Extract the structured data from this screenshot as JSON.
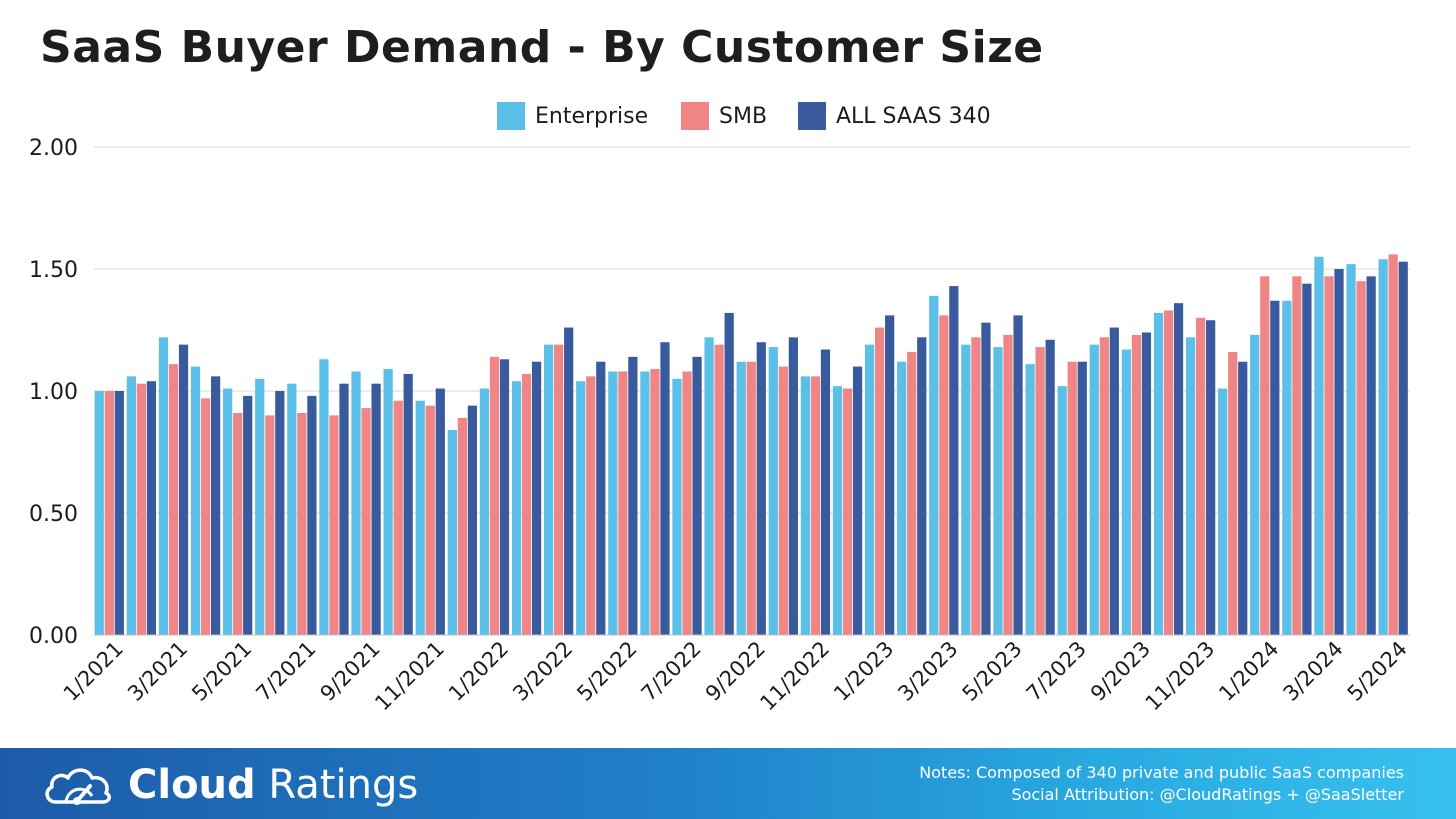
{
  "title": "SaaS Buyer Demand - By Customer Size",
  "colors": {
    "enterprise": "#5bbfe8",
    "smb": "#f08585",
    "all": "#3a5a9e",
    "grid": "#d9d9d9"
  },
  "chart_data": {
    "type": "bar",
    "title": "SaaS Buyer Demand - By Customer Size",
    "ylim": [
      0,
      2
    ],
    "yticks": [
      "0.00",
      "0.50",
      "1.00",
      "1.50",
      "2.00"
    ],
    "grid": true,
    "legend_position": "top",
    "categories": [
      "1/2021",
      "2/2021",
      "3/2021",
      "4/2021",
      "5/2021",
      "6/2021",
      "7/2021",
      "8/2021",
      "9/2021",
      "10/2021",
      "11/2021",
      "12/2021",
      "1/2022",
      "2/2022",
      "3/2022",
      "4/2022",
      "5/2022",
      "6/2022",
      "7/2022",
      "8/2022",
      "9/2022",
      "10/2022",
      "11/2022",
      "12/2022",
      "1/2023",
      "2/2023",
      "3/2023",
      "4/2023",
      "5/2023",
      "6/2023",
      "7/2023",
      "8/2023",
      "9/2023",
      "10/2023",
      "11/2023",
      "12/2023",
      "1/2024",
      "2/2024",
      "3/2024",
      "4/2024",
      "5/2024"
    ],
    "tick_labels": [
      "1/2021",
      "3/2021",
      "5/2021",
      "7/2021",
      "9/2021",
      "11/2021",
      "1/2022",
      "3/2022",
      "5/2022",
      "7/2022",
      "9/2022",
      "11/2022",
      "1/2023",
      "3/2023",
      "5/2023",
      "7/2023",
      "9/2023",
      "11/2023",
      "1/2024",
      "3/2024",
      "5/2024"
    ],
    "series": [
      {
        "name": "Enterprise",
        "values": [
          1.0,
          1.06,
          1.22,
          1.1,
          1.01,
          1.05,
          1.03,
          1.13,
          1.08,
          1.09,
          0.96,
          0.84,
          1.01,
          1.04,
          1.19,
          1.04,
          1.08,
          1.08,
          1.05,
          1.22,
          1.12,
          1.18,
          1.06,
          1.02,
          1.19,
          1.12,
          1.39,
          1.19,
          1.18,
          1.11,
          1.02,
          1.19,
          1.17,
          1.32,
          1.22,
          1.01,
          1.23,
          1.37,
          1.55,
          1.52,
          1.54
        ]
      },
      {
        "name": "SMB",
        "values": [
          1.0,
          1.03,
          1.11,
          0.97,
          0.91,
          0.9,
          0.91,
          0.9,
          0.93,
          0.96,
          0.94,
          0.89,
          1.14,
          1.07,
          1.19,
          1.06,
          1.08,
          1.09,
          1.08,
          1.19,
          1.12,
          1.1,
          1.06,
          1.01,
          1.26,
          1.16,
          1.31,
          1.22,
          1.23,
          1.18,
          1.12,
          1.22,
          1.23,
          1.33,
          1.3,
          1.16,
          1.47,
          1.47,
          1.47,
          1.45,
          1.56
        ]
      },
      {
        "name": "ALL SAAS 340",
        "values": [
          1.0,
          1.04,
          1.19,
          1.06,
          0.98,
          1.0,
          0.98,
          1.03,
          1.03,
          1.07,
          1.01,
          0.94,
          1.13,
          1.12,
          1.26,
          1.12,
          1.14,
          1.2,
          1.14,
          1.32,
          1.2,
          1.22,
          1.17,
          1.1,
          1.31,
          1.22,
          1.43,
          1.28,
          1.31,
          1.21,
          1.12,
          1.26,
          1.24,
          1.36,
          1.29,
          1.12,
          1.37,
          1.44,
          1.5,
          1.47,
          1.53
        ]
      }
    ]
  },
  "footer": {
    "brand_bold": "Cloud",
    "brand_regular": " Ratings",
    "notes_line1": "Notes: Composed of 340 private and public SaaS companies",
    "notes_line2": "Social Attribution: @CloudRatings + @SaaSletter"
  }
}
